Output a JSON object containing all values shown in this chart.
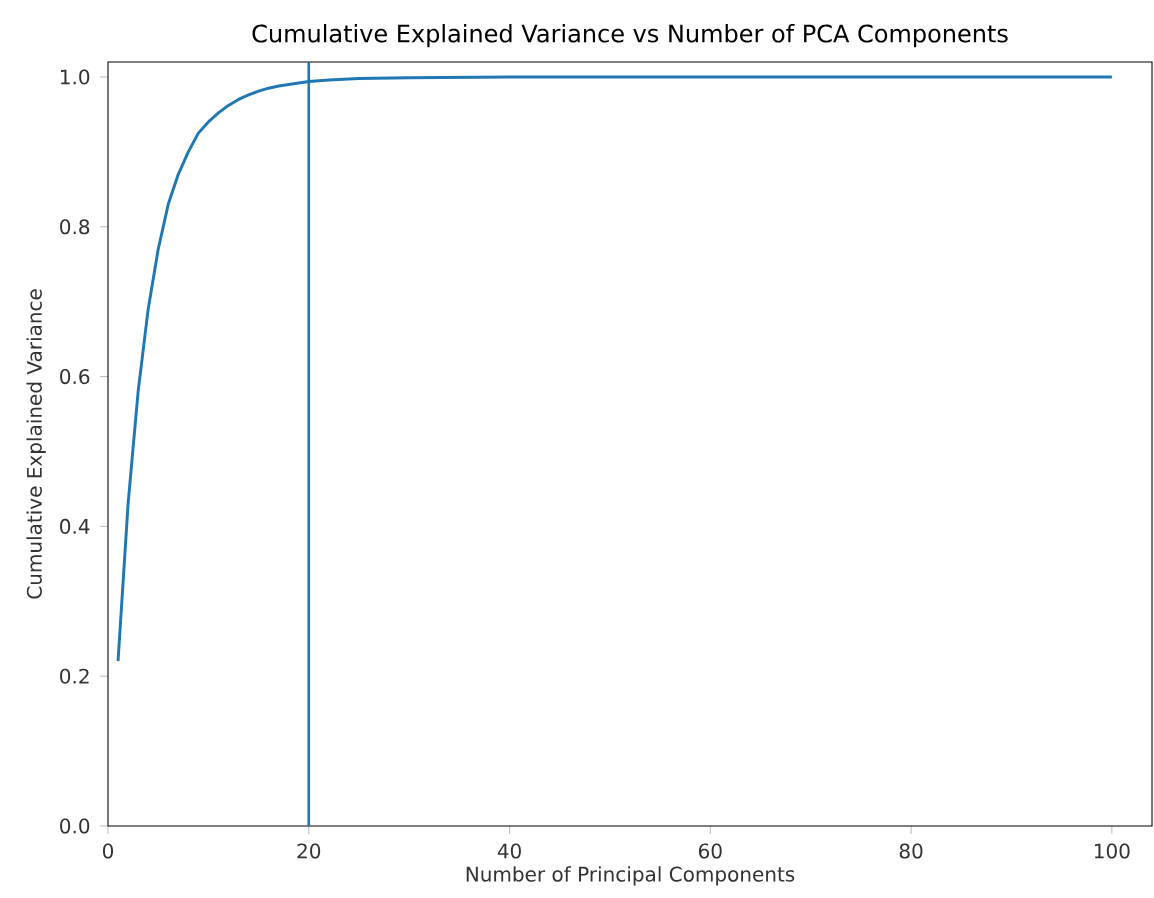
{
  "chart_data": {
    "type": "line",
    "title": "Cumulative Explained Variance vs Number of PCA Components",
    "xlabel": "Number of Principal Components",
    "ylabel": "Cumulative Explained Variance",
    "x": [
      1,
      2,
      3,
      4,
      5,
      6,
      7,
      8,
      9,
      10,
      11,
      12,
      13,
      14,
      15,
      16,
      17,
      18,
      19,
      20,
      22,
      25,
      30,
      40,
      50,
      60,
      70,
      80,
      90,
      100
    ],
    "series": [
      {
        "color": "#1f77b4",
        "values": [
          0.22,
          0.43,
          0.58,
          0.69,
          0.77,
          0.83,
          0.87,
          0.9,
          0.925,
          0.94,
          0.952,
          0.962,
          0.97,
          0.976,
          0.981,
          0.985,
          0.988,
          0.99,
          0.992,
          0.994,
          0.996,
          0.998,
          0.999,
          1.0,
          1.0,
          1.0,
          1.0,
          1.0,
          1.0,
          1.0
        ]
      }
    ],
    "xlim": [
      0,
      104
    ],
    "ylim": [
      0,
      1.02
    ],
    "xticks": [
      0,
      20,
      40,
      60,
      80,
      100
    ],
    "yticks": [
      {
        "value": 0,
        "label": "0.0"
      },
      0.2,
      0.4,
      0.6,
      0.8,
      {
        "value": 1,
        "label": "1.0"
      }
    ],
    "ref_lines": [
      {
        "axis": "x",
        "value": 20,
        "color": "#1f77b4"
      }
    ],
    "marker": "none",
    "line_style": "solid"
  }
}
